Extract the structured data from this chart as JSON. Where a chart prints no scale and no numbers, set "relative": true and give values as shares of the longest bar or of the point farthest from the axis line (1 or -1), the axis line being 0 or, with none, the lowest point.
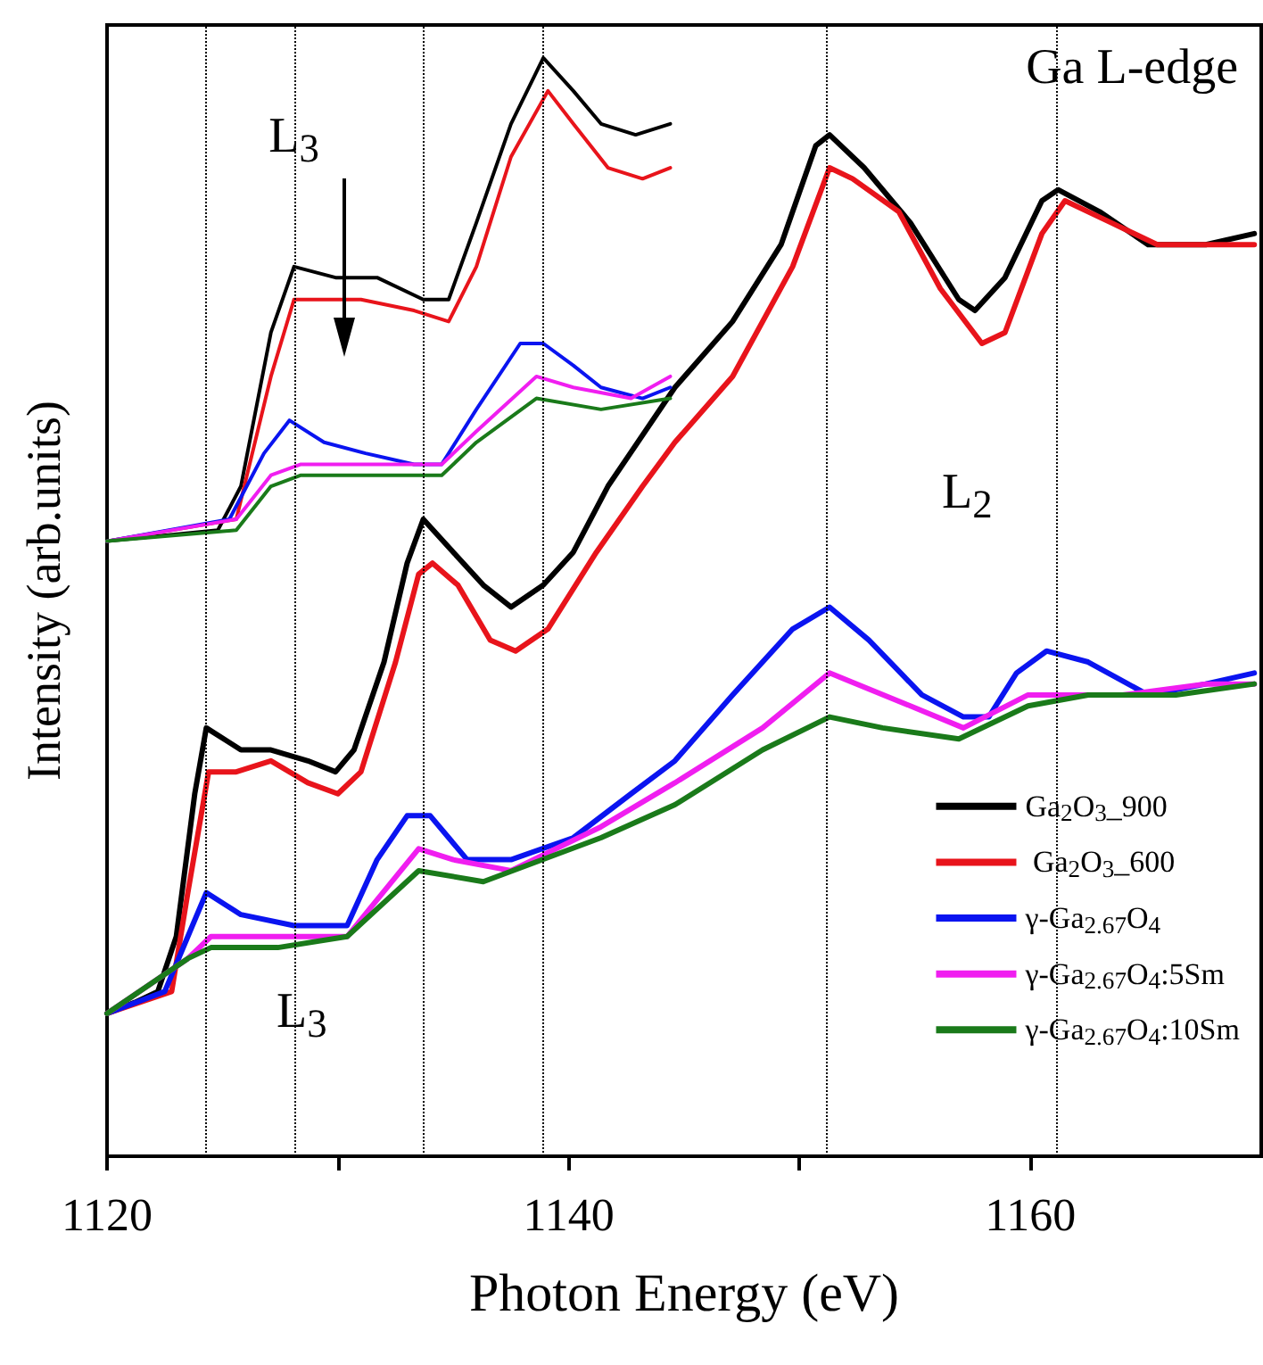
{
  "chart_data": {
    "type": "line",
    "relative": true,
    "xlabel": "Photon Energy (eV)",
    "ylabel": "Intensity (arb.units)",
    "xlim": [
      1120,
      1170
    ],
    "xticks": [
      1120,
      {
        "value": 1130,
        "label": null
      },
      1140,
      {
        "value": 1150,
        "label": null
      },
      1160
    ],
    "legend": "bottom right",
    "grid": false,
    "marker": "none",
    "annotations": [
      "Ga L-edge",
      {
        "text": "L$_{3}$",
        "x": 1128.1,
        "y": 0.9
      },
      "L$_{2}$",
      "L$_{3}$"
    ],
    "ref_lines": [
      {
        "axis": "x",
        "value": 1124.3,
        "line_style": "dotted",
        "color": "#000000"
      },
      {
        "axis": "x",
        "value": 1133.7,
        "line_style": "dotted",
        "color": "#000000"
      },
      {
        "axis": "x",
        "value": 1151.2,
        "line_style": "dotted",
        "color": "#000000"
      },
      {
        "axis": "x",
        "value": 1161.1,
        "line_style": "dotted",
        "color": "#000000"
      },
      {
        "axis": "x",
        "value": 1128.1,
        "line_style": "dotted",
        "color": "#000000"
      },
      {
        "axis": "x",
        "value": 1138.9,
        "line_style": "dotted",
        "color": "#000000"
      }
    ],
    "series": [
      {
        "name": "Ga$_{2}$O$_{3}$_900",
        "color": "#000000",
        "x": [
          1120,
          1121.2,
          1122.2,
          1123,
          1123.8,
          1124.3,
          1125.8,
          1127.1,
          1128.7,
          1129.9,
          1130.7,
          1132,
          1133,
          1133.7,
          1135,
          1136.3,
          1137.5,
          1138.9,
          1140.2,
          1141.7,
          1144.6,
          1147.1,
          1149.2,
          1150.7,
          1151.3,
          1152.8,
          1154.8,
          1156.9,
          1157.6,
          1158.9,
          1160.5,
          1161.2,
          1163,
          1165.1,
          1167.6,
          1169.7
        ],
        "values": [
          0.13,
          0.14,
          0.15,
          0.2,
          0.33,
          0.39,
          0.37,
          0.37,
          0.36,
          0.35,
          0.37,
          0.45,
          0.54,
          0.58,
          0.55,
          0.52,
          0.5,
          0.52,
          0.55,
          0.61,
          0.7,
          0.76,
          0.83,
          0.92,
          0.93,
          0.9,
          0.85,
          0.78,
          0.77,
          0.8,
          0.87,
          0.88,
          0.86,
          0.83,
          0.83,
          0.84
        ]
      },
      {
        "name": " Ga$_{2}$O$_{3}$_600",
        "color": "#e8141b",
        "x": [
          1120,
          1122.8,
          1123.5,
          1124.4,
          1125.6,
          1127.1,
          1128.7,
          1130,
          1131,
          1132.5,
          1133.5,
          1134.1,
          1135.2,
          1136.6,
          1137.7,
          1139.1,
          1141.2,
          1143.2,
          1144.6,
          1147.1,
          1149.7,
          1151.3,
          1152.3,
          1154.3,
          1156.1,
          1157.9,
          1158.9,
          1160.5,
          1161.5,
          1163.5,
          1165.5,
          1169.7
        ],
        "values": [
          0.13,
          0.15,
          0.24,
          0.35,
          0.35,
          0.36,
          0.34,
          0.33,
          0.35,
          0.45,
          0.53,
          0.54,
          0.52,
          0.47,
          0.46,
          0.48,
          0.55,
          0.61,
          0.65,
          0.71,
          0.81,
          0.9,
          0.89,
          0.86,
          0.79,
          0.74,
          0.75,
          0.84,
          0.87,
          0.85,
          0.83,
          0.83
        ]
      },
      {
        "name": "γ-Ga$_{2.67}$O$_{4}$",
        "color": "#0a14f0",
        "x": [
          1120,
          1122.5,
          1123.5,
          1124.3,
          1125.8,
          1128.1,
          1130.4,
          1131.7,
          1133,
          1134,
          1135.6,
          1137.5,
          1140.2,
          1142.7,
          1144.6,
          1147.1,
          1149.7,
          1151.3,
          1153,
          1155.3,
          1157.1,
          1158.2,
          1159.4,
          1160.7,
          1162.5,
          1165.1,
          1167.6,
          1169.7
        ],
        "values": [
          0.13,
          0.15,
          0.2,
          0.24,
          0.22,
          0.21,
          0.21,
          0.27,
          0.31,
          0.31,
          0.27,
          0.27,
          0.29,
          0.33,
          0.36,
          0.42,
          0.48,
          0.5,
          0.47,
          0.42,
          0.4,
          0.4,
          0.44,
          0.46,
          0.45,
          0.42,
          0.43,
          0.44
        ]
      },
      {
        "name": "γ-Ga$_{2.67}$O$_{4}$:5Sm",
        "color": "#f01ef0",
        "x": [
          1120,
          1123.5,
          1124.5,
          1127.4,
          1130.4,
          1133.5,
          1135,
          1137.5,
          1141.4,
          1144.6,
          1148.4,
          1151.3,
          1154.8,
          1157.1,
          1159.9,
          1161.2,
          1164,
          1167.6,
          1169.7
        ],
        "values": [
          0.13,
          0.18,
          0.2,
          0.2,
          0.2,
          0.28,
          0.27,
          0.26,
          0.3,
          0.34,
          0.39,
          0.44,
          0.41,
          0.39,
          0.42,
          0.42,
          0.42,
          0.43,
          0.43
        ]
      },
      {
        "name": "γ-Ga$_{2.67}$O$_{4}$:10Sm",
        "color": "#1a7a1a",
        "x": [
          1120,
          1123.5,
          1124.5,
          1127.4,
          1130.4,
          1133.5,
          1136.3,
          1141.4,
          1144.6,
          1148.4,
          1151.3,
          1153.6,
          1156.9,
          1159.9,
          1162.5,
          1166.3,
          1169.7
        ],
        "values": [
          0.13,
          0.18,
          0.19,
          0.19,
          0.2,
          0.26,
          0.25,
          0.29,
          0.32,
          0.37,
          0.4,
          0.39,
          0.38,
          0.41,
          0.42,
          0.42,
          0.43
        ]
      },
      {
        "color": "#000000",
        "x": [
          1120,
          1124.8,
          1125.8,
          1127.1,
          1128.1,
          1129.9,
          1131.7,
          1133.7,
          1134.8,
          1136,
          1137.5,
          1138.9,
          1140.2,
          1141.4,
          1142.9,
          1144.4
        ],
        "values": [
          0.56,
          0.57,
          0.61,
          0.75,
          0.81,
          0.8,
          0.8,
          0.78,
          0.78,
          0.85,
          0.94,
          1,
          0.97,
          0.94,
          0.93,
          0.94
        ]
      },
      {
        "color": "#e8141b",
        "x": [
          1120,
          1125.6,
          1127.1,
          1128.1,
          1131,
          1133.3,
          1134.8,
          1136,
          1137.5,
          1139.1,
          1140.2,
          1141.7,
          1143.2,
          1144.4
        ],
        "values": [
          0.56,
          0.58,
          0.71,
          0.78,
          0.78,
          0.77,
          0.76,
          0.81,
          0.91,
          0.97,
          0.94,
          0.9,
          0.89,
          0.9
        ]
      },
      {
        "color": "#0a14f0",
        "x": [
          1120,
          1125.3,
          1126.8,
          1127.9,
          1129.4,
          1131.2,
          1133.3,
          1134.5,
          1136,
          1137.9,
          1138.9,
          1140.2,
          1141.4,
          1143.2,
          1144.4
        ],
        "values": [
          0.56,
          0.58,
          0.64,
          0.67,
          0.65,
          0.64,
          0.63,
          0.63,
          0.68,
          0.74,
          0.74,
          0.72,
          0.7,
          0.69,
          0.7
        ]
      },
      {
        "color": "#f01ef0",
        "x": [
          1120,
          1125.6,
          1127.1,
          1128.4,
          1131.2,
          1134.5,
          1136,
          1138.6,
          1140.2,
          1142.7,
          1144.4
        ],
        "values": [
          0.56,
          0.58,
          0.62,
          0.63,
          0.63,
          0.63,
          0.66,
          0.71,
          0.7,
          0.69,
          0.71
        ]
      },
      {
        "color": "#1a7a1a",
        "x": [
          1120,
          1125.6,
          1127.1,
          1128.4,
          1131.2,
          1134.5,
          1136,
          1138.6,
          1141.4,
          1144.4
        ],
        "values": [
          0.56,
          0.57,
          0.61,
          0.62,
          0.62,
          0.62,
          0.65,
          0.69,
          0.68,
          0.69
        ]
      }
    ]
  }
}
